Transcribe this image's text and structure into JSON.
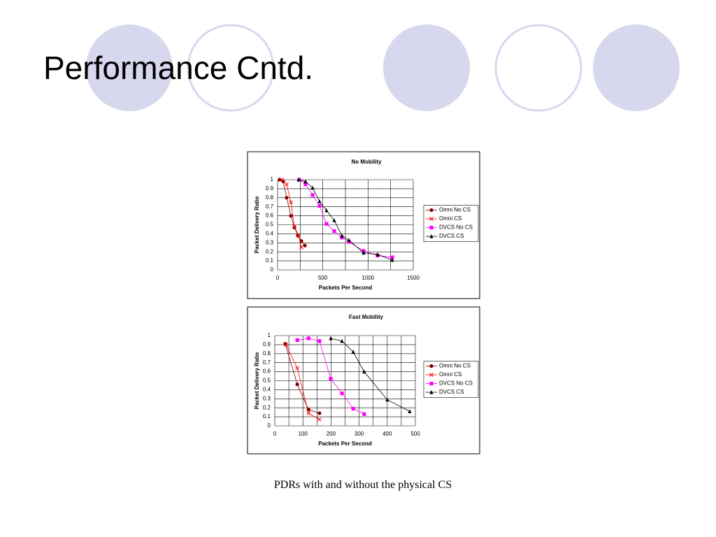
{
  "slide": {
    "title": "Performance Cntd.",
    "caption": "PDRs with and without the physical CS"
  },
  "chart_data": [
    {
      "type": "line",
      "title": "No Mobility",
      "x_label": "Packets Per Second",
      "y_label": "Packet Delivery Ratio",
      "xlim": [
        0,
        1500
      ],
      "xticks": [
        0,
        500,
        1000,
        1500
      ],
      "x_minor_grid": [
        250,
        750,
        1250
      ],
      "ylim": [
        0,
        1
      ],
      "yticks": [
        0,
        0.1,
        0.2,
        0.3,
        0.4,
        0.5,
        0.6,
        0.7,
        0.8,
        0.9,
        1
      ],
      "grid": true,
      "legend": "right",
      "series": [
        {
          "name": "Omni No CS",
          "color": "#800000",
          "marker": "circle",
          "x": [
            23,
            62,
            100,
            147,
            186,
            224,
            263,
            302
          ],
          "values": [
            1.0,
            0.98,
            0.8,
            0.6,
            0.47,
            0.38,
            0.32,
            0.27
          ]
        },
        {
          "name": "Omni CS",
          "color": "#ff0000",
          "marker": "x",
          "x": [
            46,
            100,
            147,
            186,
            232,
            263
          ],
          "values": [
            1.0,
            0.95,
            0.75,
            0.48,
            0.38,
            0.25
          ]
        },
        {
          "name": "DVCS No CS",
          "color": "#ff00ff",
          "marker": "square",
          "x": [
            240,
            309,
            387,
            464,
            541,
            626,
            711,
            789,
            951,
            1106,
            1268
          ],
          "values": [
            1.0,
            0.95,
            0.83,
            0.71,
            0.51,
            0.43,
            0.36,
            0.31,
            0.21,
            0.16,
            0.14
          ]
        },
        {
          "name": "DVCS CS",
          "color": "#000000",
          "marker": "triangle",
          "x": [
            232,
            309,
            387,
            464,
            541,
            626,
            711,
            789,
            951,
            1106,
            1268
          ],
          "values": [
            1.0,
            0.98,
            0.91,
            0.76,
            0.66,
            0.55,
            0.38,
            0.33,
            0.19,
            0.17,
            0.11
          ]
        }
      ]
    },
    {
      "type": "line",
      "title": "Fast Mobility",
      "x_label": "Packets Per Second",
      "y_label": "Packet Delivery Ratio",
      "xlim": [
        0,
        500
      ],
      "xticks": [
        0,
        100,
        200,
        300,
        400,
        500
      ],
      "x_minor_grid": [
        50,
        150,
        250,
        350,
        450
      ],
      "ylim": [
        0,
        1
      ],
      "yticks": [
        0,
        0.1,
        0.2,
        0.3,
        0.4,
        0.5,
        0.6,
        0.7,
        0.8,
        0.9,
        1
      ],
      "grid": true,
      "legend": "right",
      "series": [
        {
          "name": "Omni No CS",
          "color": "#800000",
          "marker": "circle",
          "x": [
            37,
            80,
            120,
            159
          ],
          "values": [
            0.91,
            0.46,
            0.18,
            0.14
          ]
        },
        {
          "name": "Omni CS",
          "color": "#ff0000",
          "marker": "x",
          "x": [
            40,
            80,
            120,
            159
          ],
          "values": [
            0.9,
            0.64,
            0.14,
            0.07
          ]
        },
        {
          "name": "DVCS No CS",
          "color": "#ff00ff",
          "marker": "square",
          "x": [
            80,
            120,
            159,
            199,
            239,
            279,
            318
          ],
          "values": [
            0.95,
            0.97,
            0.94,
            0.52,
            0.36,
            0.19,
            0.13
          ]
        },
        {
          "name": "DVCS CS",
          "color": "#000000",
          "marker": "triangle",
          "x": [
            199,
            239,
            279,
            318,
            400,
            480
          ],
          "values": [
            0.97,
            0.94,
            0.82,
            0.6,
            0.29,
            0.16
          ]
        }
      ]
    }
  ]
}
